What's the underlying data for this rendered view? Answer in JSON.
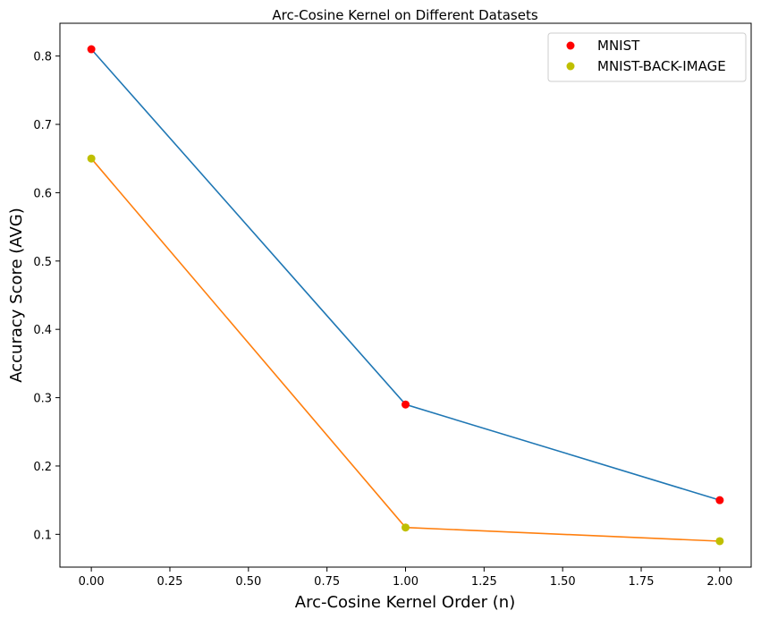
{
  "chart_data": {
    "type": "line",
    "title": "Arc-Cosine Kernel on Different Datasets",
    "xlabel": "Arc-Cosine Kernel Order (n)",
    "ylabel": "Accuracy Score (AVG)",
    "x": [
      0.0,
      1.0,
      2.0
    ],
    "xlim": [
      -0.1,
      2.1
    ],
    "ylim": [
      0.052,
      0.848
    ],
    "xticks": [
      0.0,
      0.25,
      0.5,
      0.75,
      1.0,
      1.25,
      1.5,
      1.75,
      2.0
    ],
    "xtick_labels": [
      "0.00",
      "0.25",
      "0.50",
      "0.75",
      "1.00",
      "1.25",
      "1.50",
      "1.75",
      "2.00"
    ],
    "yticks": [
      0.1,
      0.2,
      0.3,
      0.4,
      0.5,
      0.6,
      0.7,
      0.8
    ],
    "ytick_labels": [
      "0.1",
      "0.2",
      "0.3",
      "0.4",
      "0.5",
      "0.6",
      "0.7",
      "0.8"
    ],
    "grid": false,
    "legend_position": "top-right",
    "series": [
      {
        "name": "MNIST",
        "values": [
          0.81,
          0.29,
          0.15
        ],
        "line_color": "#1f77b4",
        "marker_color": "#ff0000"
      },
      {
        "name": "MNIST-BACK-IMAGE",
        "values": [
          0.65,
          0.11,
          0.09
        ],
        "line_color": "#ff7f0e",
        "marker_color": "#bfbf00"
      }
    ]
  }
}
